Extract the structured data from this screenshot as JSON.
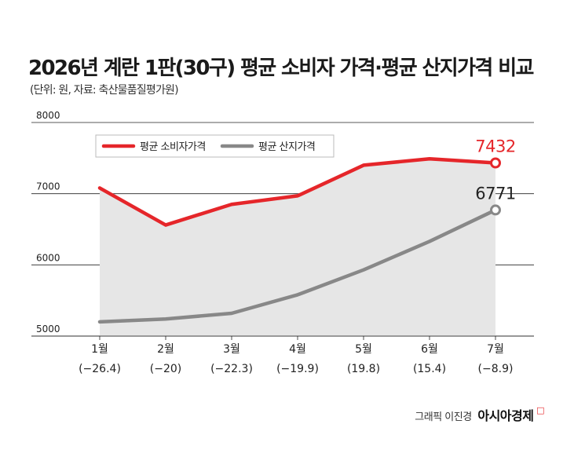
{
  "title": "2026년 계란 1판(30구) 평균 소비자 가격·평균 산지가격 비교",
  "subtitle": "(단위: 원, 자료: 축산물품질평가원)",
  "credit": {
    "author": "그래픽 이진경",
    "brand": "아시아경제",
    "brand_mark": "ㅁ"
  },
  "colors": {
    "consumer": "#e5262a",
    "producer": "#888888",
    "area": "#e6e6e6",
    "grid": "#222222"
  },
  "chart_data": {
    "type": "line",
    "categories": [
      "1월",
      "2월",
      "3월",
      "4월",
      "5월",
      "6월",
      "7월"
    ],
    "sublabels": [
      "(−26.4)",
      "(−20)",
      "(−22.3)",
      "(−19.9)",
      "(19.8)",
      "(15.4)",
      "(−8.9)"
    ],
    "series": [
      {
        "name": "평균 소비자가격",
        "values": [
          7080,
          6560,
          6850,
          6970,
          7400,
          7490,
          7432
        ]
      },
      {
        "name": "평균 산지가격",
        "values": [
          5200,
          5240,
          5320,
          5580,
          5930,
          6330,
          6771
        ]
      }
    ],
    "yticks": [
      5000,
      6000,
      7000,
      8000
    ],
    "ylim": [
      5000,
      8000
    ],
    "data_labels": [
      "7432",
      "6771"
    ],
    "legend_position": "top-left",
    "grid": true
  }
}
